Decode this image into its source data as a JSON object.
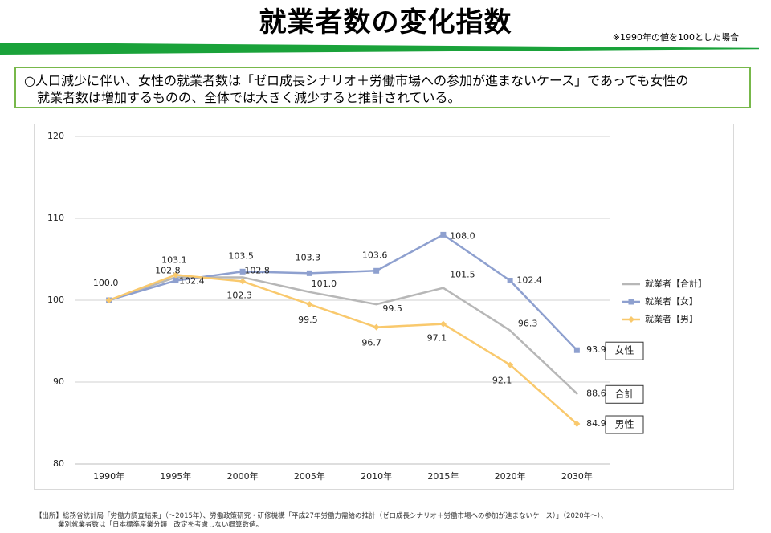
{
  "page": {
    "title": "就業者数の変化指数",
    "note": "※1990年の値を100とした場合",
    "summary": {
      "line1": "○人口減少に伴い、女性の就業者数は「ゼロ成長シナリオ＋労働市場への参加が進まないケース」であっても女性の",
      "line2": "就業者数は増加するものの、全体では大きく減少すると推計されている。"
    },
    "source": {
      "line1": "【出所】総務省統計局「労働力調査結果」（～2015年）、労働政策研究・研修機構「平成27年労働力需給の推計（ゼロ成長シナリオ＋労働市場への参加が進まないケース）」（2020年～）、",
      "line2": "業別就業者数は「日本標準産業分類」改定を考慮しない概算数値。"
    }
  },
  "chart_data": {
    "type": "line",
    "title": "",
    "xlabel": "",
    "ylabel": "",
    "categories": [
      "1990年",
      "1995年",
      "2000年",
      "2005年",
      "2010年",
      "2015年",
      "2020年",
      "2030年"
    ],
    "ylim": [
      80,
      120
    ],
    "yticks": [
      "80",
      "90",
      "100",
      "110",
      "120"
    ],
    "grid": true,
    "legend_position": "right",
    "series": [
      {
        "name": "就業者【合計】",
        "color": "#b7b7b7",
        "marker": "none",
        "values": [
          100.0,
          102.8,
          102.8,
          101.0,
          99.5,
          101.5,
          96.3,
          88.6
        ],
        "labels": [
          "",
          "102.8",
          "102.8",
          "101.0",
          "99.5",
          "101.5",
          "96.3",
          "88.6"
        ],
        "end_tag": "合計"
      },
      {
        "name": "就業者【女】",
        "color": "#8ea0cf",
        "marker": "square",
        "values": [
          100.0,
          102.4,
          103.5,
          103.3,
          103.6,
          108.0,
          102.4,
          93.9
        ],
        "labels": [
          "100.0",
          "102.4",
          "103.5",
          "103.3",
          "103.6",
          "108.0",
          "102.4",
          "93.9"
        ],
        "end_tag": "女性"
      },
      {
        "name": "就業者【男】",
        "color": "#f9c96d",
        "marker": "diamond",
        "values": [
          100.0,
          103.1,
          102.3,
          99.5,
          96.7,
          97.1,
          92.1,
          84.9
        ],
        "labels": [
          "",
          "103.1",
          "102.3",
          "99.5",
          "96.7",
          "97.1",
          "92.1",
          "84.9"
        ],
        "end_tag": "男性"
      }
    ]
  }
}
